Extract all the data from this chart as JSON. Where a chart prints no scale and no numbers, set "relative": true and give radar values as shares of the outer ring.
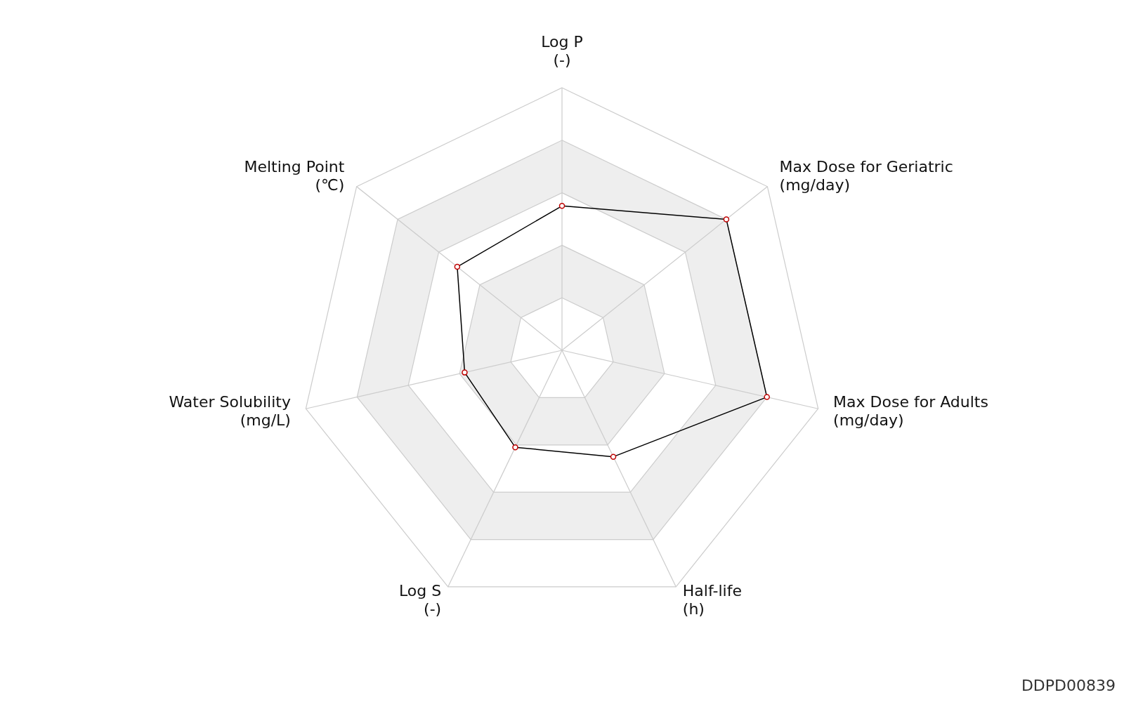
{
  "chart_data": {
    "type": "radar",
    "relative": true,
    "categories": [
      "Log P\n(-)",
      "Max Dose for Geriatric\n(mg/day)",
      "Max Dose for Adults\n(mg/day)",
      "Half-life\n(h)",
      "Log S\n(-)",
      "Water Solubility\n(mg/L)",
      "Melting Point\n(℃)"
    ],
    "series": [
      {
        "color": "#000000",
        "values": [
          0.55,
          0.8,
          0.8,
          0.45,
          0.41,
          0.38,
          0.51
        ]
      }
    ],
    "marker": "circle",
    "line_style": "solid",
    "annotations": [
      "DDPD00839"
    ]
  }
}
